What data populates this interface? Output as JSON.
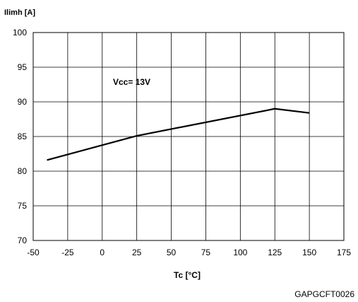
{
  "chart_data": {
    "type": "line",
    "ylabel": "Ilimh [A]",
    "xlabel": "Tc [°C]",
    "xlim": [
      -50,
      175
    ],
    "ylim": [
      70,
      100
    ],
    "xticks": [
      -50,
      -25,
      0,
      25,
      50,
      75,
      100,
      125,
      150,
      175
    ],
    "yticks": [
      70,
      75,
      80,
      85,
      90,
      95,
      100
    ],
    "grid": true,
    "annotation": "Vcc= 13V",
    "series": [
      {
        "x": [
          -40,
          25,
          125,
          150
        ],
        "y": [
          81.6,
          85.1,
          89.0,
          88.4
        ],
        "color": "#000000"
      }
    ],
    "figure_code": "GAPGCFT0026"
  }
}
